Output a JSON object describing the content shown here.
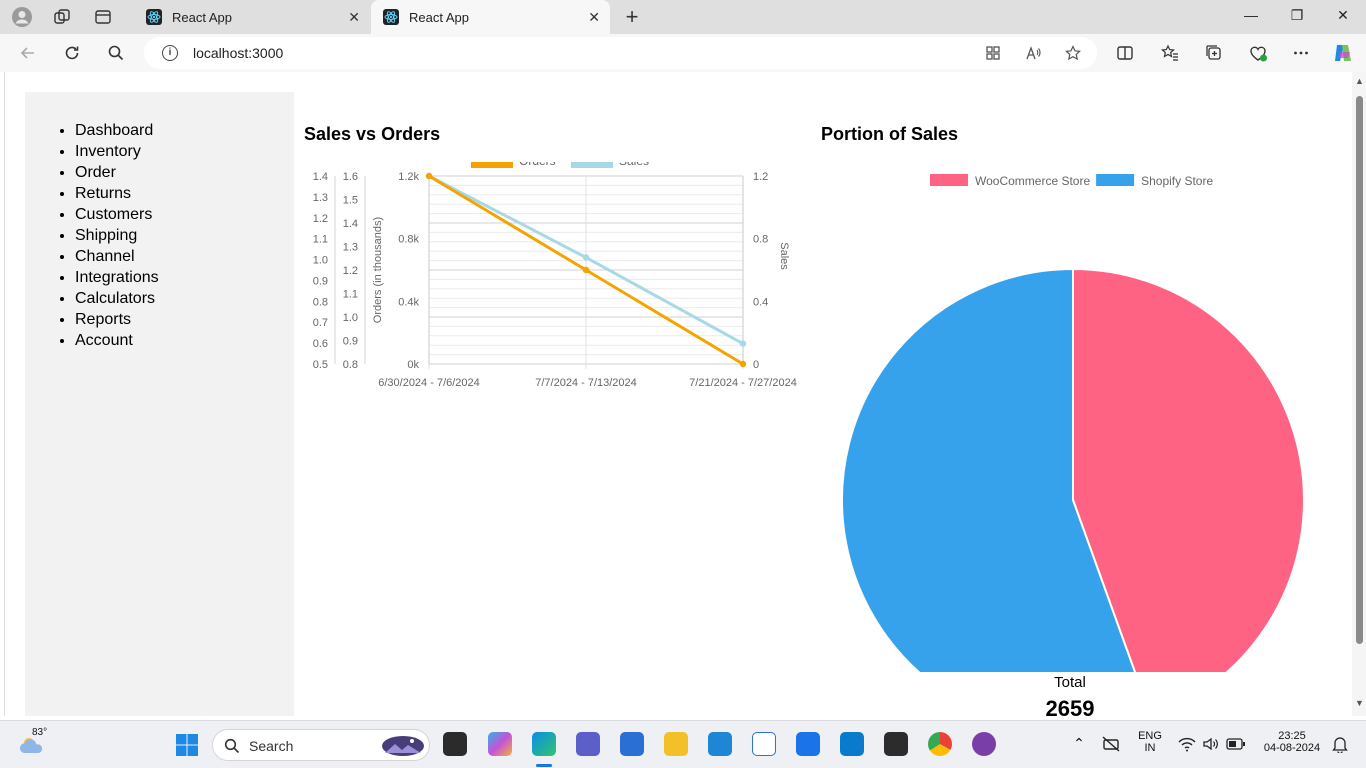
{
  "browser": {
    "tabs": [
      {
        "title": "React App",
        "close": "✕"
      },
      {
        "title": "React App",
        "close": "✕"
      }
    ],
    "new_tab": "+",
    "window_controls": {
      "minimize": "—",
      "maximize": "❐",
      "close": "✕"
    },
    "url": "localhost:3000",
    "info": "i"
  },
  "sidebar": {
    "items": [
      "Dashboard",
      "Inventory",
      "Order",
      "Returns",
      "Customers",
      "Shipping",
      "Channel",
      "Integrations",
      "Calculators",
      "Reports",
      "Account"
    ]
  },
  "line_panel": {
    "title": "Sales vs Orders"
  },
  "pie_panel": {
    "title": "Portion of Sales",
    "total_label": "Total",
    "total_value": "2659"
  },
  "chart_data": [
    {
      "type": "line",
      "title": "Sales vs Orders",
      "categories": [
        "6/30/2024 - 7/6/2024",
        "7/7/2024 - 7/13/2024",
        "7/21/2024 - 7/27/2024"
      ],
      "series": [
        {
          "name": "Orders",
          "values": [
            1.2,
            0.6,
            0.0
          ],
          "color": "#f5a300",
          "axis": "left"
        },
        {
          "name": "Sales",
          "values": [
            1.2,
            0.68,
            0.13
          ],
          "color": "#a8d8e6",
          "axis": "right"
        }
      ],
      "y_left": {
        "label": "Orders (in thousands)",
        "ticks": [
          "0k",
          "0.4k",
          "0.8k",
          "1.2k"
        ],
        "range": [
          0,
          1.2
        ]
      },
      "y_right": {
        "label": "Sales",
        "ticks": [
          "0",
          "0.4",
          "0.8",
          "1.2"
        ],
        "range": [
          0,
          1.2
        ]
      },
      "extra_axis_a": {
        "ticks": [
          "1.4",
          "1.3",
          "1.2",
          "1.1",
          "1.0",
          "0.9",
          "0.8",
          "0.7",
          "0.6",
          "0.5"
        ]
      },
      "extra_axis_b": {
        "ticks": [
          "1.6",
          "1.5",
          "1.4",
          "1.3",
          "1.2",
          "1.1",
          "1.0",
          "0.9",
          "0.8"
        ]
      },
      "legend_position": "top"
    },
    {
      "type": "pie",
      "title": "Portion of Sales",
      "labels": [
        "WooCommerce Store",
        "Shopify Store"
      ],
      "values": [
        44.5,
        55.5
      ],
      "colors": [
        "#ff6384",
        "#36a2eb"
      ],
      "legend_position": "top"
    }
  ],
  "taskbar": {
    "weather_temp": "83°",
    "search_label": "Search",
    "lang_line1": "ENG",
    "lang_line2": "IN",
    "time": "23:25",
    "date": "04-08-2024",
    "up_arrow": "⌃"
  }
}
